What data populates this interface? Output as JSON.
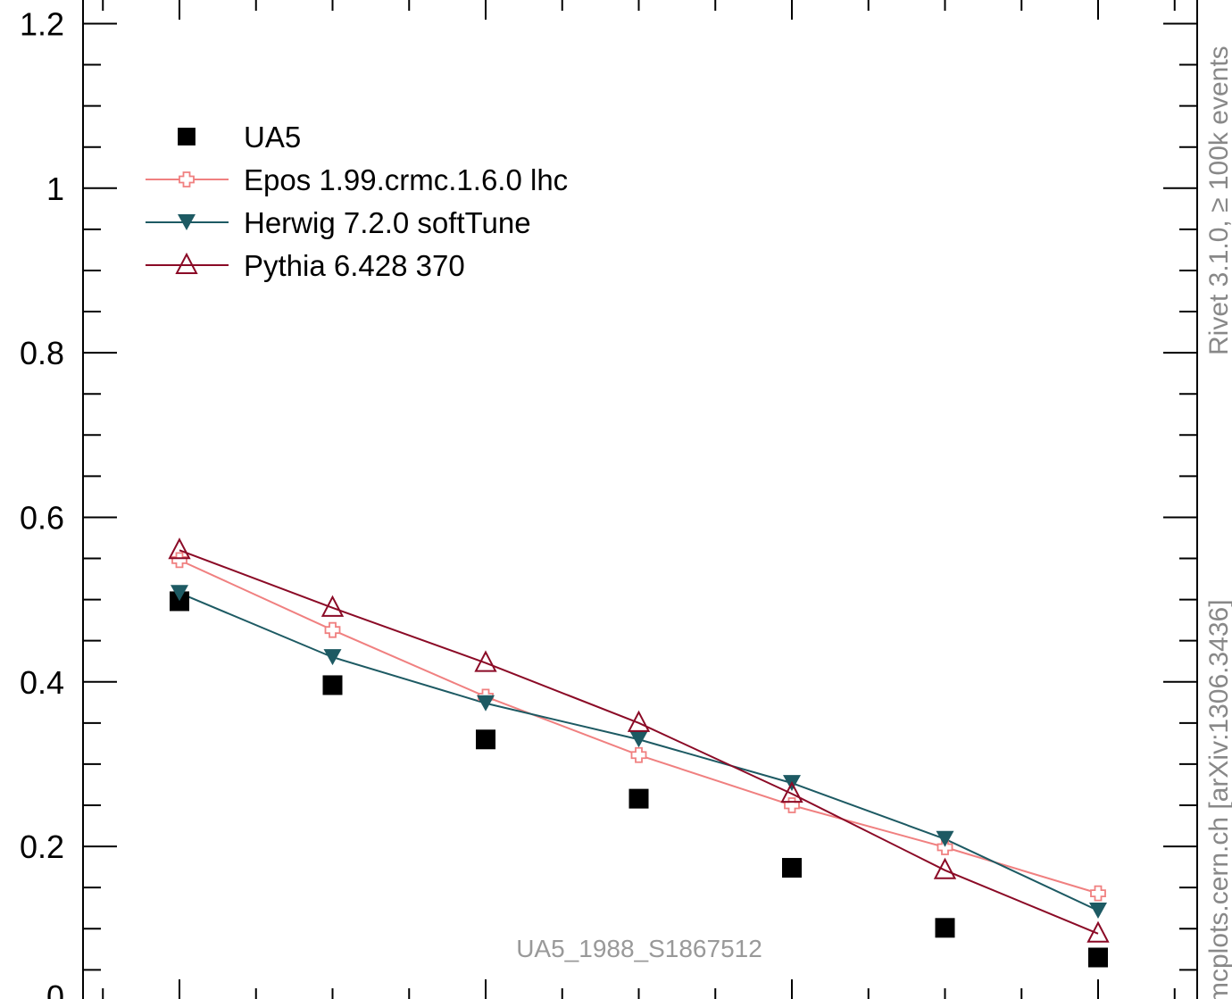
{
  "chart_data": {
    "type": "scatter",
    "analysis_label": "UA5_1988_S1867512",
    "side_label_top": "Rivet 3.1.0, ≥ 100k events",
    "side_label_bottom": "mcplots.cern.ch [arXiv:1306.3436]",
    "xlim": [
      0.25,
      7.75
    ],
    "ylim": [
      0.0,
      1.2
    ],
    "y_tick_labels": [
      {
        "value": 0.2,
        "label": "0.2"
      },
      {
        "value": 0.4,
        "label": "0.4"
      },
      {
        "value": 0.6,
        "label": "0.6"
      },
      {
        "value": 0.8,
        "label": "0.8"
      },
      {
        "value": 1.0,
        "label": "1"
      },
      {
        "value": 1.2,
        "label": "1.2"
      }
    ],
    "x": [
      1,
      2,
      3,
      4,
      5,
      6,
      7
    ],
    "series": [
      {
        "name": "UA5",
        "marker": "square",
        "color": "#000000",
        "line": false,
        "values": [
          0.498,
          0.396,
          0.33,
          0.258,
          0.174,
          0.101,
          0.065
        ]
      },
      {
        "name": "Epos 1.99.crmc.1.6.0 lhc",
        "marker": "cross-open",
        "color": "#f08080",
        "line": true,
        "values": [
          0.548,
          0.463,
          0.382,
          0.311,
          0.25,
          0.199,
          0.143
        ]
      },
      {
        "name": "Herwig 7.2.0 softTune",
        "marker": "triangle-down",
        "color": "#1d5a63",
        "line": true,
        "values": [
          0.508,
          0.43,
          0.374,
          0.33,
          0.277,
          0.209,
          0.122
        ]
      },
      {
        "name": "Pythia 6.428 370",
        "marker": "triangle-open",
        "color": "#8b0a26",
        "line": true,
        "values": [
          0.56,
          0.49,
          0.423,
          0.35,
          0.264,
          0.171,
          0.094
        ]
      }
    ]
  }
}
